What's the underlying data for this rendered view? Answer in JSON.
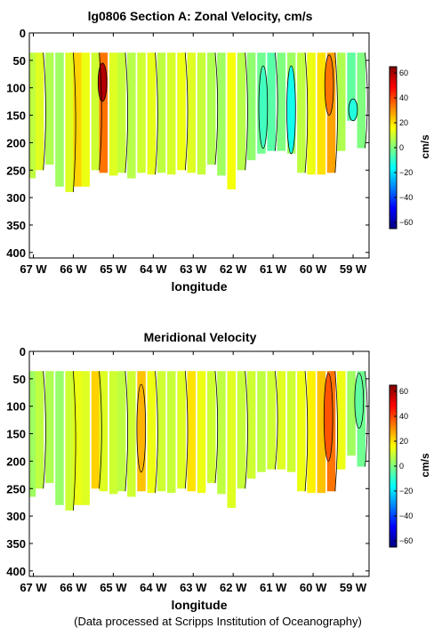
{
  "footer": "(Data processed at Scripps Institution of Oceanography)",
  "colorscale": {
    "colors": [
      "#00007f",
      "#0000ff",
      "#0080ff",
      "#00ffff",
      "#80ff80",
      "#ffff00",
      "#ff8000",
      "#ff0000",
      "#7f0000"
    ]
  },
  "chart_data": [
    {
      "type": "heatmap",
      "title": "lg0806 Section A: Zonal Velocity, cm/s",
      "xlabel": "longitude",
      "ylabel": "",
      "x_tick_labels": [
        "67 W",
        "66 W",
        "65 W",
        "64 W",
        "63 W",
        "62 W",
        "61 W",
        "60 W",
        "59 W"
      ],
      "x_ticks": [
        -67,
        -66,
        -65,
        -64,
        -63,
        -62,
        -61,
        -60,
        -59
      ],
      "xlim": [
        -67.1,
        -58.6
      ],
      "y_tick_labels": [
        "0",
        "50",
        "100",
        "150",
        "200",
        "250",
        "300",
        "350",
        "400"
      ],
      "y_ticks": [
        0,
        50,
        100,
        150,
        200,
        250,
        300,
        350,
        400
      ],
      "ylim": [
        0,
        410
      ],
      "y_reversed": true,
      "colorbar": {
        "label": "cm/s",
        "ticks": [
          60,
          40,
          20,
          0,
          -20,
          -40,
          -60
        ],
        "tick_labels": [
          "60",
          "40",
          "20",
          "0",
          "−20",
          "−40",
          "−60"
        ],
        "range": [
          -65,
          65
        ]
      },
      "data_top_depth": 36,
      "columns": [
        {
          "lon": -67.05,
          "bottom": 265,
          "v": 8
        },
        {
          "lon": -66.85,
          "bottom": 250,
          "v": 12
        },
        {
          "lon": -66.6,
          "bottom": 240,
          "v": 6
        },
        {
          "lon": -66.35,
          "bottom": 280,
          "v": 4
        },
        {
          "lon": -66.1,
          "bottom": 290,
          "v": 12
        },
        {
          "lon": -65.9,
          "bottom": 280,
          "v": 22
        },
        {
          "lon": -65.7,
          "bottom": 280,
          "v": 14
        },
        {
          "lon": -65.45,
          "bottom": 250,
          "v": 10
        },
        {
          "lon": -65.25,
          "bottom": 255,
          "v": 34
        },
        {
          "lon": -65.0,
          "bottom": 260,
          "v": 12
        },
        {
          "lon": -64.8,
          "bottom": 255,
          "v": 9
        },
        {
          "lon": -64.55,
          "bottom": 265,
          "v": 7
        },
        {
          "lon": -64.3,
          "bottom": 255,
          "v": 10
        },
        {
          "lon": -64.05,
          "bottom": 258,
          "v": 13
        },
        {
          "lon": -63.8,
          "bottom": 255,
          "v": 8
        },
        {
          "lon": -63.55,
          "bottom": 258,
          "v": 11
        },
        {
          "lon": -63.3,
          "bottom": 250,
          "v": 14
        },
        {
          "lon": -63.05,
          "bottom": 255,
          "v": 12
        },
        {
          "lon": -62.8,
          "bottom": 258,
          "v": 9
        },
        {
          "lon": -62.55,
          "bottom": 240,
          "v": 6
        },
        {
          "lon": -62.3,
          "bottom": 260,
          "v": 4
        },
        {
          "lon": -62.05,
          "bottom": 285,
          "v": 15
        },
        {
          "lon": -61.8,
          "bottom": 250,
          "v": 7
        },
        {
          "lon": -61.55,
          "bottom": 232,
          "v": 2
        },
        {
          "lon": -61.3,
          "bottom": 220,
          "v": -2
        },
        {
          "lon": -61.05,
          "bottom": 215,
          "v": -5
        },
        {
          "lon": -60.8,
          "bottom": 215,
          "v": 0
        },
        {
          "lon": -60.55,
          "bottom": 220,
          "v": 4
        },
        {
          "lon": -60.3,
          "bottom": 255,
          "v": 8
        },
        {
          "lon": -60.05,
          "bottom": 258,
          "v": 14
        },
        {
          "lon": -59.8,
          "bottom": 258,
          "v": 20
        },
        {
          "lon": -59.55,
          "bottom": 255,
          "v": 28
        },
        {
          "lon": -59.3,
          "bottom": 215,
          "v": 6
        },
        {
          "lon": -59.05,
          "bottom": 160,
          "v": -4
        },
        {
          "lon": -58.8,
          "bottom": 210,
          "v": 0
        }
      ],
      "features": [
        {
          "lon": -65.27,
          "top": 55,
          "bottom": 125,
          "v": 58
        },
        {
          "lon": -60.55,
          "top": 60,
          "bottom": 220,
          "v": -14
        },
        {
          "lon": -61.25,
          "top": 60,
          "bottom": 210,
          "v": -8
        },
        {
          "lon": -59.0,
          "top": 120,
          "bottom": 160,
          "v": -12
        },
        {
          "lon": -59.6,
          "top": 40,
          "bottom": 150,
          "v": 34
        }
      ]
    },
    {
      "type": "heatmap",
      "title": "Meridional Velocity",
      "xlabel": "longitude",
      "ylabel": "",
      "x_tick_labels": [
        "67 W",
        "66 W",
        "65 W",
        "64 W",
        "63 W",
        "62 W",
        "61 W",
        "60 W",
        "59 W"
      ],
      "x_ticks": [
        -67,
        -66,
        -65,
        -64,
        -63,
        -62,
        -61,
        -60,
        -59
      ],
      "xlim": [
        -67.1,
        -58.6
      ],
      "y_tick_labels": [
        "0",
        "50",
        "100",
        "150",
        "200",
        "250",
        "300",
        "350",
        "400"
      ],
      "y_ticks": [
        0,
        50,
        100,
        150,
        200,
        250,
        300,
        350,
        400
      ],
      "ylim": [
        0,
        410
      ],
      "y_reversed": true,
      "colorbar": {
        "label": "cm/s",
        "ticks": [
          60,
          40,
          20,
          0,
          -20,
          -40,
          -60
        ],
        "tick_labels": [
          "60",
          "40",
          "20",
          "0",
          "−20",
          "−40",
          "−60"
        ],
        "range": [
          -65,
          65
        ]
      },
      "data_top_depth": 36,
      "columns": [
        {
          "lon": -67.05,
          "bottom": 265,
          "v": 4
        },
        {
          "lon": -66.85,
          "bottom": 250,
          "v": 8
        },
        {
          "lon": -66.6,
          "bottom": 240,
          "v": 6
        },
        {
          "lon": -66.35,
          "bottom": 280,
          "v": 3
        },
        {
          "lon": -66.1,
          "bottom": 290,
          "v": 10
        },
        {
          "lon": -65.9,
          "bottom": 280,
          "v": 14
        },
        {
          "lon": -65.7,
          "bottom": 280,
          "v": 12
        },
        {
          "lon": -65.45,
          "bottom": 250,
          "v": 22
        },
        {
          "lon": -65.25,
          "bottom": 255,
          "v": 12
        },
        {
          "lon": -65.0,
          "bottom": 260,
          "v": 10
        },
        {
          "lon": -64.8,
          "bottom": 255,
          "v": 8
        },
        {
          "lon": -64.55,
          "bottom": 265,
          "v": 10
        },
        {
          "lon": -64.3,
          "bottom": 255,
          "v": 24
        },
        {
          "lon": -64.05,
          "bottom": 258,
          "v": 14
        },
        {
          "lon": -63.8,
          "bottom": 255,
          "v": 10
        },
        {
          "lon": -63.55,
          "bottom": 258,
          "v": 9
        },
        {
          "lon": -63.3,
          "bottom": 250,
          "v": 12
        },
        {
          "lon": -63.05,
          "bottom": 255,
          "v": 20
        },
        {
          "lon": -62.8,
          "bottom": 258,
          "v": 14
        },
        {
          "lon": -62.55,
          "bottom": 240,
          "v": 10
        },
        {
          "lon": -62.3,
          "bottom": 260,
          "v": 8
        },
        {
          "lon": -62.05,
          "bottom": 285,
          "v": 12
        },
        {
          "lon": -61.8,
          "bottom": 250,
          "v": 9
        },
        {
          "lon": -61.55,
          "bottom": 232,
          "v": 10
        },
        {
          "lon": -61.3,
          "bottom": 220,
          "v": 8
        },
        {
          "lon": -61.05,
          "bottom": 215,
          "v": 10
        },
        {
          "lon": -60.8,
          "bottom": 215,
          "v": 12
        },
        {
          "lon": -60.55,
          "bottom": 220,
          "v": 10
        },
        {
          "lon": -60.3,
          "bottom": 255,
          "v": 14
        },
        {
          "lon": -60.05,
          "bottom": 258,
          "v": 18
        },
        {
          "lon": -59.8,
          "bottom": 258,
          "v": 24
        },
        {
          "lon": -59.55,
          "bottom": 255,
          "v": 34
        },
        {
          "lon": -59.3,
          "bottom": 215,
          "v": 14
        },
        {
          "lon": -59.05,
          "bottom": 190,
          "v": 4
        },
        {
          "lon": -58.8,
          "bottom": 210,
          "v": -2
        }
      ],
      "features": [
        {
          "lon": -59.62,
          "top": 40,
          "bottom": 200,
          "v": 38
        },
        {
          "lon": -64.3,
          "top": 60,
          "bottom": 220,
          "v": 26
        },
        {
          "lon": -58.85,
          "top": 40,
          "bottom": 140,
          "v": -4
        }
      ]
    }
  ]
}
